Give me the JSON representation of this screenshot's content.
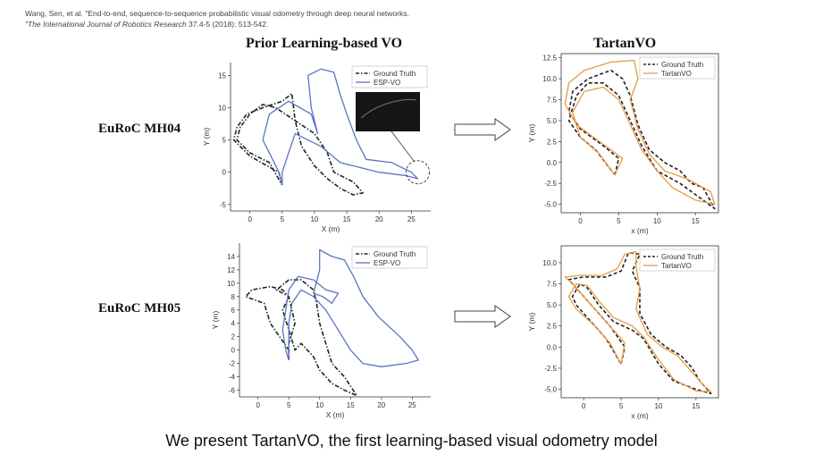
{
  "citation": {
    "line1": "Wang, Sen, et al. \"End-to-end, sequence-to-sequence probabilistic visual odometry through deep neural networks.",
    "line2_italic": "\"The International Journal of Robotics Research",
    "line2_rest": " 37.4-5 (2018): 513-542."
  },
  "headers": {
    "left": "Prior Learning-based VO",
    "right": "TartanVO"
  },
  "rows": {
    "mh04": "EuRoC MH04",
    "mh05": "EuRoC MH05"
  },
  "caption": "We present TartanVO, the first learning-based visual odometry model",
  "colors": {
    "ground_truth": "#222222",
    "esp_vo": "#5b73c2",
    "tartanvo": "#e89a45"
  },
  "chart_data": [
    {
      "id": "mh04-espvo",
      "type": "line",
      "title": "",
      "xlabel": "X (m)",
      "ylabel": "Y (m)",
      "xlim": [
        -3,
        28
      ],
      "ylim": [
        -6,
        17
      ],
      "xticks": [
        0,
        5,
        10,
        15,
        20,
        25
      ],
      "yticks": [
        -5,
        0,
        5,
        10,
        15
      ],
      "legend_position": "top-right",
      "series": [
        {
          "name": "Ground Truth",
          "style": "dashdot",
          "color": "#222222",
          "points": [
            [
              5,
              -2
            ],
            [
              4.5,
              0
            ],
            [
              3,
              0.8
            ],
            [
              0,
              2.5
            ],
            [
              -2.5,
              5
            ],
            [
              -2,
              7
            ],
            [
              -0.5,
              9
            ],
            [
              2,
              10
            ],
            [
              5,
              11
            ],
            [
              6.5,
              12.2
            ],
            [
              7,
              8
            ],
            [
              8,
              4
            ],
            [
              10,
              1
            ],
            [
              12,
              -1
            ],
            [
              14,
              -2.5
            ],
            [
              16,
              -3.5
            ],
            [
              17.5,
              -3.2
            ],
            [
              16,
              -1.5
            ],
            [
              13,
              0
            ],
            [
              12,
              3
            ],
            [
              10,
              6
            ],
            [
              7,
              8
            ],
            [
              4,
              10
            ],
            [
              2,
              10.5
            ],
            [
              0,
              9
            ],
            [
              -1.5,
              7
            ],
            [
              -2,
              5
            ],
            [
              0,
              3
            ],
            [
              3,
              1.5
            ],
            [
              5,
              -2
            ]
          ]
        },
        {
          "name": "ESP-VO",
          "style": "solid",
          "color": "#5b73c2",
          "points": [
            [
              5,
              -2
            ],
            [
              4.5,
              0
            ],
            [
              3,
              3
            ],
            [
              2,
              5
            ],
            [
              3,
              9
            ],
            [
              6,
              11
            ],
            [
              9.5,
              9
            ],
            [
              10.5,
              6
            ],
            [
              9.5,
              10
            ],
            [
              9,
              15
            ],
            [
              11,
              16
            ],
            [
              13,
              15.5
            ],
            [
              14,
              12
            ],
            [
              15,
              9
            ],
            [
              16.5,
              5
            ],
            [
              18,
              2
            ],
            [
              22,
              1.5
            ],
            [
              25,
              0
            ],
            [
              26,
              -1
            ],
            [
              24,
              -0.5
            ],
            [
              20,
              0
            ],
            [
              16,
              1
            ],
            [
              14,
              1.5
            ],
            [
              11,
              4
            ],
            [
              9,
              5
            ],
            [
              7,
              6
            ],
            [
              6,
              3
            ],
            [
              5,
              0
            ],
            [
              5,
              -2
            ]
          ]
        }
      ]
    },
    {
      "id": "mh04-tartanvo",
      "type": "line",
      "title": "",
      "xlabel": "x (m)",
      "ylabel": "Y (m)",
      "xlim": [
        -2.5,
        18
      ],
      "ylim": [
        -6,
        13
      ],
      "xticks": [
        0,
        5,
        10,
        15
      ],
      "yticks": [
        -5.0,
        -2.5,
        0.0,
        2.5,
        5.0,
        7.5,
        10.0,
        12.5
      ],
      "legend_position": "top-right",
      "series": [
        {
          "name": "Ground Truth",
          "style": "dashed",
          "color": "#222222",
          "points": [
            [
              4.5,
              -1.5
            ],
            [
              5,
              0.5
            ],
            [
              3,
              2
            ],
            [
              0,
              4
            ],
            [
              -1.5,
              6
            ],
            [
              -1,
              8.5
            ],
            [
              1,
              10
            ],
            [
              4,
              11
            ],
            [
              5.5,
              10
            ],
            [
              6.5,
              8
            ],
            [
              7.5,
              4.5
            ],
            [
              9,
              1.5
            ],
            [
              11,
              0
            ],
            [
              13,
              -1
            ],
            [
              14.5,
              -2.5
            ],
            [
              16,
              -3
            ],
            [
              17.5,
              -5.5
            ],
            [
              16,
              -4.5
            ],
            [
              13,
              -2.5
            ],
            [
              10,
              -1
            ],
            [
              8,
              2
            ],
            [
              6.5,
              5
            ],
            [
              5,
              8
            ],
            [
              3,
              9.5
            ],
            [
              1,
              9.5
            ],
            [
              -0.5,
              8
            ],
            [
              -1.5,
              5
            ],
            [
              0,
              3
            ],
            [
              2,
              1.5
            ],
            [
              4.5,
              -1.5
            ]
          ]
        },
        {
          "name": "TartanVO",
          "style": "solid",
          "color": "#e89a45",
          "points": [
            [
              4.5,
              -1.5
            ],
            [
              5.5,
              0.5
            ],
            [
              2.5,
              2.5
            ],
            [
              -0.5,
              4.5
            ],
            [
              -2,
              7
            ],
            [
              -1.5,
              9.5
            ],
            [
              0.5,
              11
            ],
            [
              4,
              12
            ],
            [
              7,
              12.2
            ],
            [
              7.5,
              10
            ],
            [
              6.5,
              7.5
            ],
            [
              7.5,
              4
            ],
            [
              9,
              1
            ],
            [
              11,
              -1
            ],
            [
              14,
              -2
            ],
            [
              17,
              -3.5
            ],
            [
              17.5,
              -5
            ],
            [
              15,
              -4.5
            ],
            [
              12,
              -3
            ],
            [
              10,
              -1
            ],
            [
              8,
              1.5
            ],
            [
              6.5,
              4.5
            ],
            [
              5,
              7.5
            ],
            [
              3,
              9
            ],
            [
              0.5,
              8.5
            ],
            [
              -1,
              6
            ],
            [
              0,
              3
            ],
            [
              2.5,
              1
            ],
            [
              4.5,
              -1.5
            ]
          ]
        }
      ]
    },
    {
      "id": "mh05-espvo",
      "type": "line",
      "title": "",
      "xlabel": "X (m)",
      "ylabel": "Y (m)",
      "xlim": [
        -3,
        28
      ],
      "ylim": [
        -7,
        16
      ],
      "xticks": [
        0,
        5,
        10,
        15,
        20,
        25
      ],
      "yticks": [
        -6,
        -4,
        -2,
        0,
        2,
        4,
        6,
        8,
        10,
        12,
        14
      ],
      "legend_position": "top-right",
      "series": [
        {
          "name": "Ground Truth",
          "style": "dashdot",
          "color": "#222222",
          "points": [
            [
              5,
              -1.5
            ],
            [
              5,
              0
            ],
            [
              3.5,
              2
            ],
            [
              2,
              4
            ],
            [
              1,
              7
            ],
            [
              -2,
              8
            ],
            [
              -1,
              9
            ],
            [
              2,
              9.5
            ],
            [
              4,
              9
            ],
            [
              5,
              8
            ],
            [
              4,
              6
            ],
            [
              5,
              3
            ],
            [
              6,
              0
            ],
            [
              7,
              1
            ],
            [
              9,
              -1
            ],
            [
              10,
              -3
            ],
            [
              12,
              -5
            ],
            [
              14,
              -6
            ],
            [
              16,
              -6.8
            ],
            [
              14,
              -4
            ],
            [
              12,
              -2
            ],
            [
              11,
              1
            ],
            [
              10,
              4
            ],
            [
              9.5,
              7
            ],
            [
              9,
              9
            ],
            [
              7,
              10.5
            ],
            [
              5,
              10.5
            ],
            [
              3,
              9
            ],
            [
              5,
              8
            ],
            [
              6,
              4
            ],
            [
              5,
              1
            ],
            [
              5,
              -1.5
            ]
          ]
        },
        {
          "name": "ESP-VO",
          "style": "solid",
          "color": "#5b73c2",
          "points": [
            [
              5,
              -1.5
            ],
            [
              4.5,
              0
            ],
            [
              4,
              3
            ],
            [
              4.5,
              6
            ],
            [
              5,
              9
            ],
            [
              6.5,
              11
            ],
            [
              9,
              10.5
            ],
            [
              11,
              9
            ],
            [
              13,
              8.5
            ],
            [
              12,
              7
            ],
            [
              10.5,
              8
            ],
            [
              9,
              8.5
            ],
            [
              10,
              12
            ],
            [
              10,
              15
            ],
            [
              12,
              14
            ],
            [
              14,
              13.5
            ],
            [
              15.5,
              11
            ],
            [
              17,
              8
            ],
            [
              19.5,
              5
            ],
            [
              23,
              2
            ],
            [
              25,
              0
            ],
            [
              26,
              -1.5
            ],
            [
              24,
              -2
            ],
            [
              20,
              -2.5
            ],
            [
              17,
              -2
            ],
            [
              15,
              0
            ],
            [
              13,
              3
            ],
            [
              11,
              6
            ],
            [
              9,
              8
            ],
            [
              7,
              9
            ],
            [
              5.5,
              7
            ],
            [
              5,
              4
            ],
            [
              5,
              0
            ],
            [
              5,
              -1.5
            ]
          ]
        }
      ]
    },
    {
      "id": "mh05-tartanvo",
      "type": "line",
      "title": "",
      "xlabel": "x (m)",
      "ylabel": "Y (m)",
      "xlim": [
        -3,
        18
      ],
      "ylim": [
        -6,
        12
      ],
      "xticks": [
        0,
        5,
        10,
        15
      ],
      "yticks": [
        -5.0,
        -2.5,
        0.0,
        2.5,
        5.0,
        7.5,
        10.0
      ],
      "legend_position": "top-right",
      "series": [
        {
          "name": "Ground Truth",
          "style": "dashed",
          "color": "#222222",
          "points": [
            [
              5,
              -2
            ],
            [
              5.5,
              0
            ],
            [
              3.5,
              2.5
            ],
            [
              1,
              5
            ],
            [
              -1,
              7
            ],
            [
              -2,
              8
            ],
            [
              0,
              8.3
            ],
            [
              3,
              8.3
            ],
            [
              5,
              9
            ],
            [
              6,
              11.2
            ],
            [
              7.5,
              11
            ],
            [
              6.5,
              9
            ],
            [
              7.5,
              7
            ],
            [
              7.5,
              4
            ],
            [
              9,
              1.5
            ],
            [
              11,
              0
            ],
            [
              13,
              -1
            ],
            [
              14.5,
              -2.5
            ],
            [
              15.5,
              -4
            ],
            [
              17,
              -5.5
            ],
            [
              15,
              -5
            ],
            [
              12,
              -4
            ],
            [
              10,
              -2
            ],
            [
              8,
              1
            ],
            [
              6.5,
              2
            ],
            [
              4,
              3
            ],
            [
              2,
              5
            ],
            [
              0.5,
              7
            ],
            [
              -0.5,
              7.5
            ],
            [
              -1.5,
              6
            ],
            [
              -1,
              5
            ],
            [
              1,
              3
            ],
            [
              3,
              1
            ],
            [
              5,
              -2
            ]
          ]
        },
        {
          "name": "TartanVO",
          "style": "solid",
          "color": "#e89a45",
          "points": [
            [
              5,
              -2
            ],
            [
              5.5,
              0.5
            ],
            [
              3,
              3
            ],
            [
              0.5,
              5.5
            ],
            [
              -1.5,
              7.5
            ],
            [
              -2.5,
              8.3
            ],
            [
              -0.5,
              8.5
            ],
            [
              2.5,
              8.5
            ],
            [
              4.5,
              9.3
            ],
            [
              5.5,
              11
            ],
            [
              7,
              11.3
            ],
            [
              7,
              9.5
            ],
            [
              7.5,
              7
            ],
            [
              7,
              4.5
            ],
            [
              8.5,
              1.5
            ],
            [
              10.5,
              0
            ],
            [
              12.5,
              -1
            ],
            [
              14.5,
              -3
            ],
            [
              16,
              -4.5
            ],
            [
              17,
              -5.3
            ],
            [
              15,
              -5.2
            ],
            [
              12,
              -3.8
            ],
            [
              10,
              -1.5
            ],
            [
              8,
              1.2
            ],
            [
              6.5,
              2.5
            ],
            [
              4,
              3.5
            ],
            [
              2,
              5.5
            ],
            [
              0.5,
              7.3
            ],
            [
              -1,
              7.5
            ],
            [
              -2,
              6
            ],
            [
              -1,
              4.5
            ],
            [
              1.5,
              2.5
            ],
            [
              3.5,
              0.5
            ],
            [
              5,
              -2
            ]
          ]
        }
      ]
    }
  ]
}
